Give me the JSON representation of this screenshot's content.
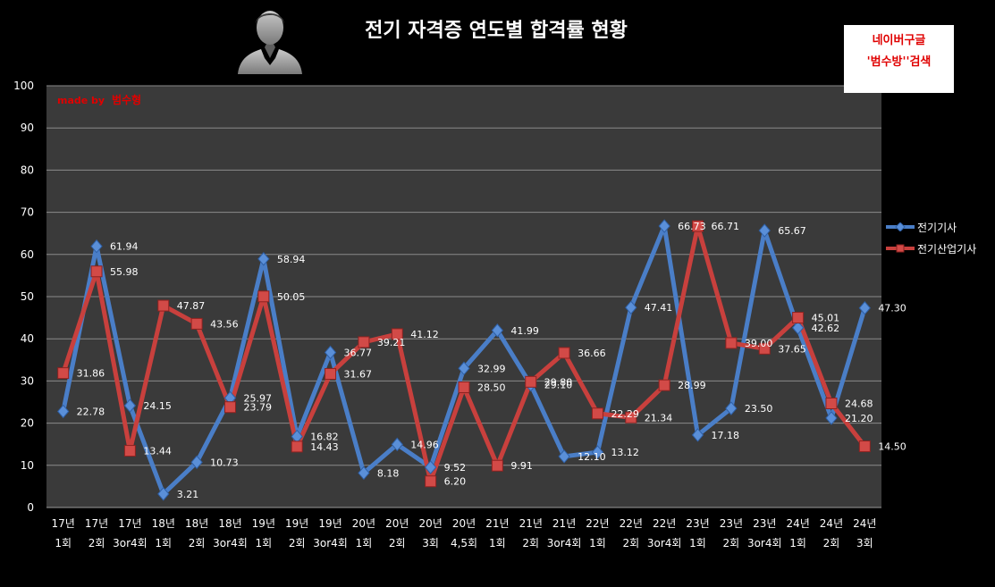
{
  "header": {
    "title": "전기 자격증 연도별 합격률 현황",
    "badge_line1": "네이버구글",
    "badge_line2": "'범수방''검색",
    "watermark_prefix": "made by",
    "watermark_name": "범수형",
    "avatar_icon": "person-silhouette-icon"
  },
  "colors": {
    "background": "#000000",
    "plot_area": "#3a3a3a",
    "gridline": "#8a8a8a",
    "series1": "#4a7ec7",
    "series2": "#c8403d",
    "badge_text": "#e00000"
  },
  "chart_data": {
    "type": "line",
    "title": "전기 자격증 연도별 합격률 현황",
    "xlabel": "",
    "ylabel": "",
    "ylim": [
      0,
      100
    ],
    "yticks": [
      0,
      10,
      20,
      30,
      40,
      50,
      60,
      70,
      80,
      90,
      100
    ],
    "grid": true,
    "legend": "right",
    "categories": [
      [
        "17년",
        "1회"
      ],
      [
        "17년",
        "2회"
      ],
      [
        "17년",
        "3or4회"
      ],
      [
        "18년",
        "1회"
      ],
      [
        "18년",
        "2회"
      ],
      [
        "18년",
        "3or4회"
      ],
      [
        "19년",
        "1회"
      ],
      [
        "19년",
        "2회"
      ],
      [
        "19년",
        "3or4회"
      ],
      [
        "20년",
        "1회"
      ],
      [
        "20년",
        "2회"
      ],
      [
        "20년",
        "3회"
      ],
      [
        "20년",
        "4,5회"
      ],
      [
        "21년",
        "1회"
      ],
      [
        "21년",
        "2회"
      ],
      [
        "21년",
        "3or4회"
      ],
      [
        "22년",
        "1회"
      ],
      [
        "22년",
        "2회"
      ],
      [
        "22년",
        "3or4회"
      ],
      [
        "23년",
        "1회"
      ],
      [
        "23년",
        "2회"
      ],
      [
        "23년",
        "3or4회"
      ],
      [
        "24년",
        "1회"
      ],
      [
        "24년",
        "2회"
      ],
      [
        "24년",
        "3회"
      ]
    ],
    "series": [
      {
        "name": "전기기사",
        "marker": "diamond",
        "values": [
          22.78,
          61.94,
          24.15,
          3.21,
          10.73,
          25.97,
          58.94,
          16.82,
          36.77,
          8.18,
          14.96,
          9.52,
          32.99,
          41.99,
          29.1,
          12.1,
          13.12,
          47.41,
          66.73,
          17.18,
          23.5,
          65.67,
          42.62,
          21.2,
          47.3
        ],
        "labels": [
          "22.78",
          "61.94",
          "24.15",
          "3.21",
          "10.73",
          "25.97",
          "58.94",
          "16.82",
          "36.77",
          "8.18",
          "14.96",
          "9.52",
          "32.99",
          "41.99",
          "29.10",
          "12.10",
          "13.12",
          "47.41",
          "66.73",
          "17.18",
          "23.50",
          "65.67",
          "42.62",
          "21.20",
          "47.30"
        ]
      },
      {
        "name": "전기산업기사",
        "marker": "square",
        "values": [
          31.86,
          55.98,
          13.44,
          47.87,
          43.56,
          23.79,
          50.05,
          14.43,
          31.67,
          39.21,
          41.12,
          6.2,
          28.5,
          9.91,
          29.8,
          36.66,
          22.29,
          21.34,
          28.99,
          66.71,
          39.0,
          37.65,
          45.01,
          24.68,
          14.5
        ],
        "labels": [
          "31.86",
          "55.98",
          "13.44",
          "47.87",
          "43.56",
          "23.79",
          "50.05",
          "14.43",
          "31.67",
          "39.21",
          "41.12",
          "6.20",
          "28.50",
          "9.91",
          "29.80",
          "36.66",
          "22.29",
          "21.34",
          "28.99",
          "66.71",
          "39.00",
          "37.65",
          "45.01",
          "24.68",
          "14.50"
        ]
      }
    ]
  }
}
